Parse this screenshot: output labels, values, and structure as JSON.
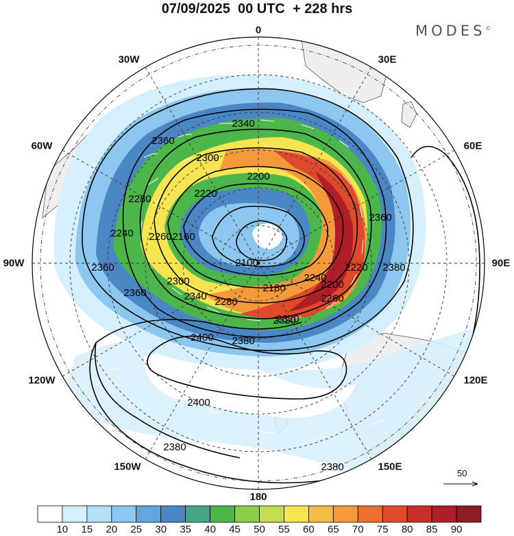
{
  "header": {
    "title": "07/09/2025  00 UTC  + 228 hrs",
    "brand": "MODES",
    "brand_mark": "©"
  },
  "longitude_labels": [
    "0",
    "30E",
    "60E",
    "90E",
    "120E",
    "150E",
    "180",
    "150W",
    "120W",
    "90W",
    "60W",
    "30W"
  ],
  "contour_labels": [
    "2340",
    "2360",
    "2300",
    "2200",
    "2220",
    "2280",
    "2260",
    "2240",
    "2160",
    "2100",
    "2180",
    "2200",
    "2220",
    "2240",
    "2260",
    "2280",
    "2300",
    "2320",
    "2340",
    "2360",
    "2380",
    "2380",
    "2380",
    "2400",
    "2400",
    "2380",
    "2360",
    "2320",
    "2360"
  ],
  "reference_vector": {
    "label": "50"
  },
  "colorbar": {
    "ticks": [
      "10",
      "15",
      "20",
      "25",
      "30",
      "35",
      "40",
      "45",
      "50",
      "55",
      "60",
      "65",
      "70",
      "75",
      "80",
      "85",
      "90"
    ],
    "colors": [
      "#ffffff",
      "#d6effc",
      "#b6e0f7",
      "#8dc6ee",
      "#63a6db",
      "#4a87c4",
      "#45a48a",
      "#4db64a",
      "#8ccc4b",
      "#c3dd4e",
      "#f6e451",
      "#f7bc45",
      "#f49a3b",
      "#ee6f30",
      "#e04a2c",
      "#cb2e2a",
      "#b01f27",
      "#8e1a22"
    ]
  },
  "colors": {
    "land": "#eeeeee",
    "coast": "#555555",
    "contour": "#000000",
    "grid": "#333333"
  }
}
